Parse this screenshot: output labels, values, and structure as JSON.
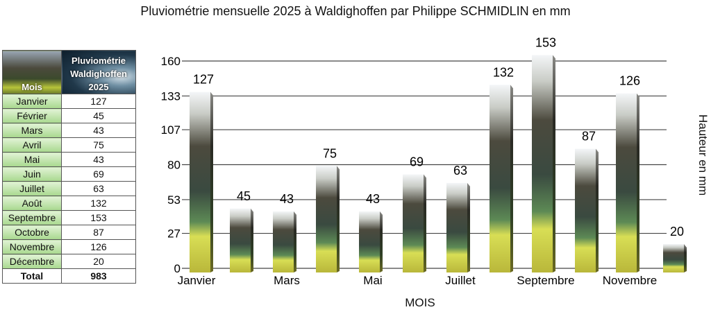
{
  "chart_data": {
    "type": "bar",
    "title": "Pluviométrie mensuelle 2025 à Waldighoffen par Philippe SCHMIDLIN en mm",
    "xlabel": "MOIS",
    "ylabel": "Hauteur en mm",
    "categories": [
      "Janvier",
      "Février",
      "Mars",
      "Avril",
      "Mai",
      "Juin",
      "Juillet",
      "Août",
      "Septembre",
      "Octobre",
      "Novembre",
      "Décembre"
    ],
    "visible_xtick_labels": [
      "Janvier",
      "",
      "Mars",
      "",
      "Mai",
      "",
      "Juillet",
      "",
      "Septembre",
      "",
      "Novembre",
      ""
    ],
    "values": [
      127,
      45,
      43,
      75,
      43,
      69,
      63,
      132,
      153,
      87,
      126,
      20
    ],
    "yticks": [
      0,
      27,
      53,
      80,
      107,
      133,
      160
    ],
    "ylim": [
      0,
      160
    ],
    "grid": true,
    "legend": "none"
  },
  "table": {
    "header_col1": "Mois",
    "header_col2": [
      "Pluviométrie",
      "Waldighoffen",
      "2025"
    ],
    "rows": [
      {
        "month": "Janvier",
        "value": "127"
      },
      {
        "month": "Février",
        "value": "45"
      },
      {
        "month": "Mars",
        "value": "43"
      },
      {
        "month": "Avril",
        "value": "75"
      },
      {
        "month": "Mai",
        "value": "43"
      },
      {
        "month": "Juin",
        "value": "69"
      },
      {
        "month": "Juillet",
        "value": "63"
      },
      {
        "month": "Août",
        "value": "132"
      },
      {
        "month": "Septembre",
        "value": "153"
      },
      {
        "month": "Octobre",
        "value": "87"
      },
      {
        "month": "Novembre",
        "value": "126"
      },
      {
        "month": "Décembre",
        "value": "20"
      }
    ],
    "total_label": "Total",
    "total_value": "983"
  }
}
